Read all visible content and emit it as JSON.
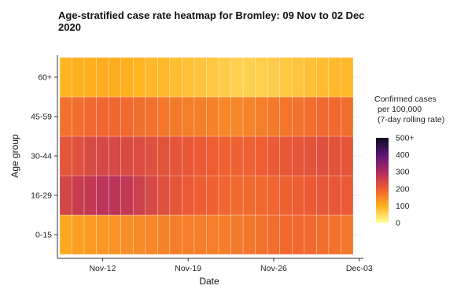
{
  "chart_data": {
    "type": "heatmap",
    "title_line1": "Age-stratified case rate heatmap for Bromley: 09 Nov to 02 Dec",
    "title_line2": "2020",
    "xlabel": "Date",
    "ylabel": "Age group",
    "x_start": "2020-11-09",
    "x_end": "2020-12-02",
    "x_ticks": [
      "Nov-12",
      "Nov-19",
      "Nov-26",
      "Dec-03"
    ],
    "age_groups": [
      "0-15",
      "16-29",
      "30-44",
      "45-59",
      "60+"
    ],
    "dates": [
      "09 Nov",
      "10 Nov",
      "11 Nov",
      "12 Nov",
      "13 Nov",
      "14 Nov",
      "15 Nov",
      "16 Nov",
      "17 Nov",
      "18 Nov",
      "19 Nov",
      "20 Nov",
      "21 Nov",
      "22 Nov",
      "23 Nov",
      "24 Nov",
      "25 Nov",
      "26 Nov",
      "27 Nov",
      "28 Nov",
      "29 Nov",
      "30 Nov",
      "01 Dec",
      "02 Dec"
    ],
    "values": {
      "60+": [
        95,
        100,
        100,
        105,
        105,
        100,
        95,
        90,
        90,
        85,
        80,
        75,
        70,
        65,
        60,
        60,
        62,
        65,
        70,
        75,
        80,
        85,
        90,
        90
      ],
      "45-59": [
        175,
        180,
        185,
        190,
        190,
        185,
        180,
        175,
        170,
        165,
        160,
        160,
        155,
        150,
        150,
        155,
        160,
        165,
        170,
        175,
        180,
        185,
        185,
        180
      ],
      "30-44": [
        215,
        225,
        235,
        240,
        240,
        235,
        230,
        225,
        220,
        215,
        210,
        205,
        200,
        195,
        195,
        195,
        200,
        205,
        210,
        215,
        220,
        225,
        220,
        215
      ],
      "16-29": [
        245,
        260,
        270,
        280,
        280,
        270,
        255,
        240,
        225,
        215,
        205,
        200,
        195,
        190,
        185,
        185,
        185,
        190,
        195,
        200,
        205,
        210,
        210,
        205
      ],
      "0-15": [
        110,
        120,
        125,
        130,
        135,
        140,
        145,
        150,
        155,
        160,
        160,
        160,
        160,
        160,
        165,
        170,
        175,
        180,
        185,
        185,
        185,
        180,
        175,
        170
      ]
    },
    "legend": {
      "title_lines": [
        "Confirmed cases",
        "per 100,000",
        "(7-day rolling rate)"
      ],
      "labels": [
        "500+",
        "400",
        "300",
        "200",
        "100",
        "0"
      ],
      "min": 0,
      "max": 500
    },
    "grid": true
  }
}
